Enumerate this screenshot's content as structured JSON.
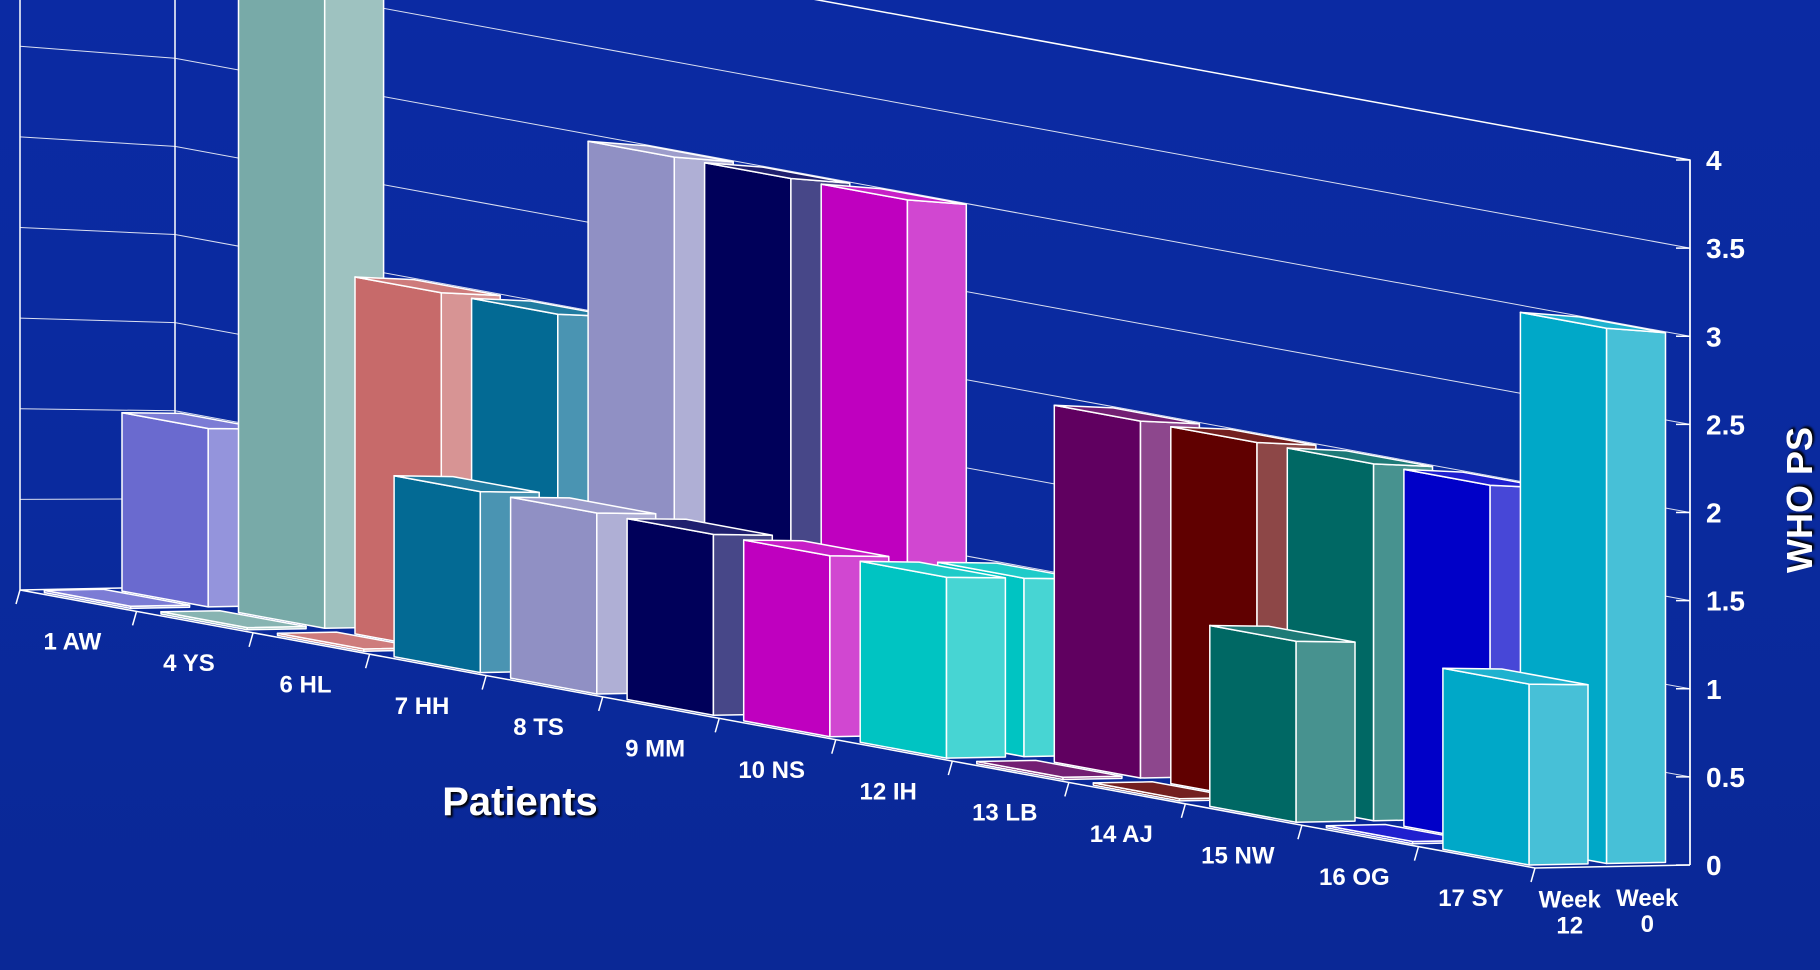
{
  "chart_data": {
    "type": "bar",
    "subtype": "3d-clustered-depth",
    "xlabel": "Patients",
    "ylabel": "WHO PS",
    "ylim": [
      0,
      4
    ],
    "yticks": [
      "0",
      "0.5",
      "1",
      "1.5",
      "2",
      "2.5",
      "3",
      "3.5",
      "4"
    ],
    "grid": true,
    "categories": [
      "1 AW",
      "4 YS",
      "6 HL",
      "7 HH",
      "8 TS",
      "9 MM",
      "10 NS",
      "12 IH",
      "13 LB",
      "14 AJ",
      "15 NW",
      "16 OG",
      "17 SY"
    ],
    "series": [
      {
        "name": "Week 12",
        "values": [
          0,
          0,
          0,
          1,
          1,
          1,
          1,
          1,
          0,
          0,
          1,
          0,
          1
        ]
      },
      {
        "name": "Week 0",
        "values": [
          1,
          4,
          2,
          2,
          3,
          3,
          3,
          1,
          2,
          2,
          2,
          2,
          3
        ]
      }
    ],
    "depth_labels": [
      [
        "Week",
        "12"
      ],
      [
        "Week",
        "0"
      ]
    ],
    "colors": {
      "background": "#0a2a9e",
      "bars": [
        "#6a6acf",
        "#78aaa8",
        "#c76a6a",
        "#036a94",
        "#9090c4",
        "#00005a",
        "#bf00bf",
        "#00c4c2",
        "#600060",
        "#600000",
        "#006864",
        "#0000c8",
        "#00a8c8"
      ]
    }
  }
}
